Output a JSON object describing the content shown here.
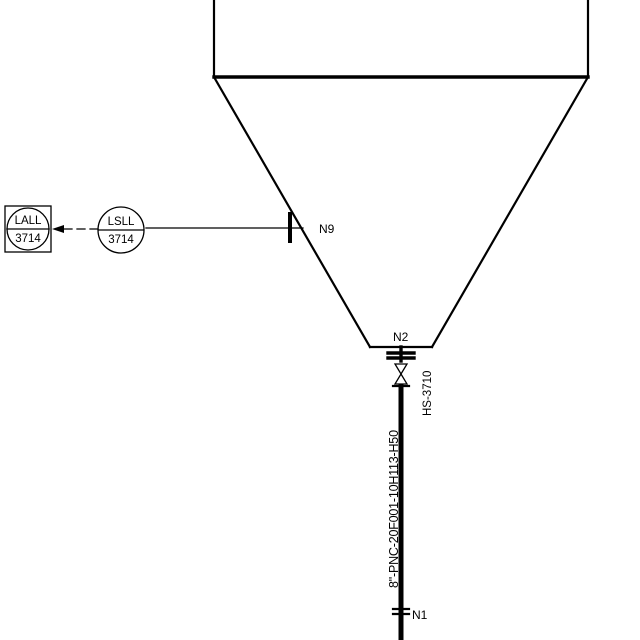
{
  "nozzles": {
    "n9": "N9",
    "n2": "N2",
    "n1": "N1"
  },
  "instruments": {
    "lsll": {
      "function": "LSLL",
      "number": "3714"
    },
    "lall": {
      "function": "LALL",
      "number": "3714"
    }
  },
  "valve": {
    "tag": "HS-3710"
  },
  "pipe": {
    "line_number": "8\"-PNC-20F001-10H113-H50"
  },
  "colors": {
    "ink": "#000000",
    "background": "#ffffff"
  }
}
